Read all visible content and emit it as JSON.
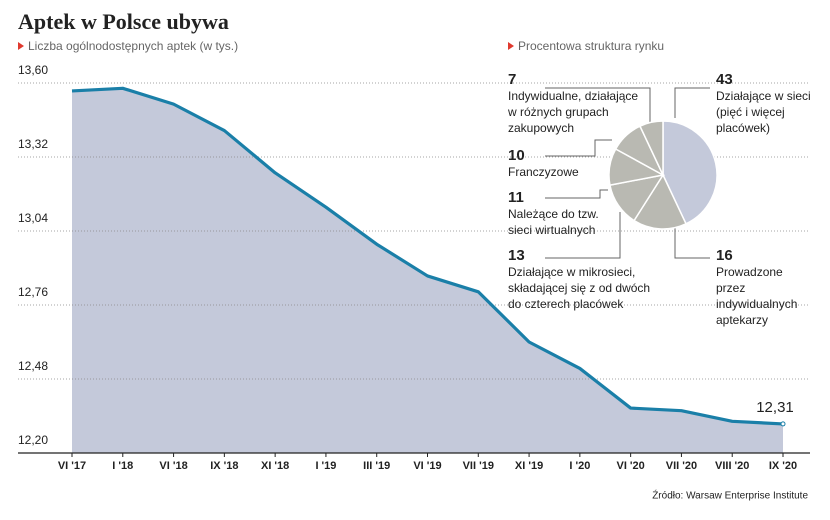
{
  "chart_data": [
    {
      "type": "area",
      "title": "Aptek w Polsce ubywa",
      "subtitle": "Liczba ogólnodostępnych aptek (w tys.)",
      "source": "Źródło: Warsaw Enterprise Institute",
      "categories": [
        "VI '17",
        "I '18",
        "VI '18",
        "IX '18",
        "XI '18",
        "I '19",
        "III '19",
        "VI '19",
        "VII '19",
        "XI '19",
        "I '20",
        "VI '20",
        "VII '20",
        "VIII '20",
        "IX '20"
      ],
      "values": [
        13.57,
        13.58,
        13.52,
        13.42,
        13.26,
        13.13,
        12.99,
        12.87,
        12.81,
        12.62,
        12.52,
        12.37,
        12.36,
        12.32,
        12.31
      ],
      "value_labels": [
        null,
        null,
        null,
        null,
        null,
        null,
        null,
        null,
        null,
        null,
        null,
        null,
        null,
        null,
        "12,31"
      ],
      "color": "#1a7fa8",
      "fill": "#c4c9da",
      "ylim": [
        12.2,
        13.6
      ],
      "yticks": [
        {
          "value": 12.2,
          "label": "12,20"
        },
        {
          "value": 12.48,
          "label": "12,48"
        },
        {
          "value": 12.76,
          "label": "12,76"
        },
        {
          "value": 13.04,
          "label": "13,04"
        },
        {
          "value": 13.32,
          "label": "13,32"
        },
        {
          "value": 13.6,
          "label": "13,60"
        }
      ],
      "grid": true
    },
    {
      "type": "pie",
      "title": "Procentowa struktura rynku",
      "values": [
        43,
        16,
        13,
        11,
        10,
        7
      ],
      "labels": [
        [
          "Działające w sieci",
          "(pięć i więcej",
          "placówek)"
        ],
        [
          "Prowadzone",
          "przez",
          "indywidualnych",
          "aptekarzy"
        ],
        [
          "Działające w mikrosieci,",
          "składającej się z od dwóch",
          "do czterech placówek"
        ],
        [
          "Należące do tzw.",
          "sieci wirtualnych"
        ],
        [
          "Franczyzowe"
        ],
        [
          "Indywidualne, działające",
          "w różnych grupach",
          "zakupowych"
        ]
      ],
      "colors": [
        "#c4c9da",
        "#b9b9b2",
        "#b9b9b2",
        "#b9b9b2",
        "#b9b9b2",
        "#b9b9b2"
      ]
    }
  ]
}
